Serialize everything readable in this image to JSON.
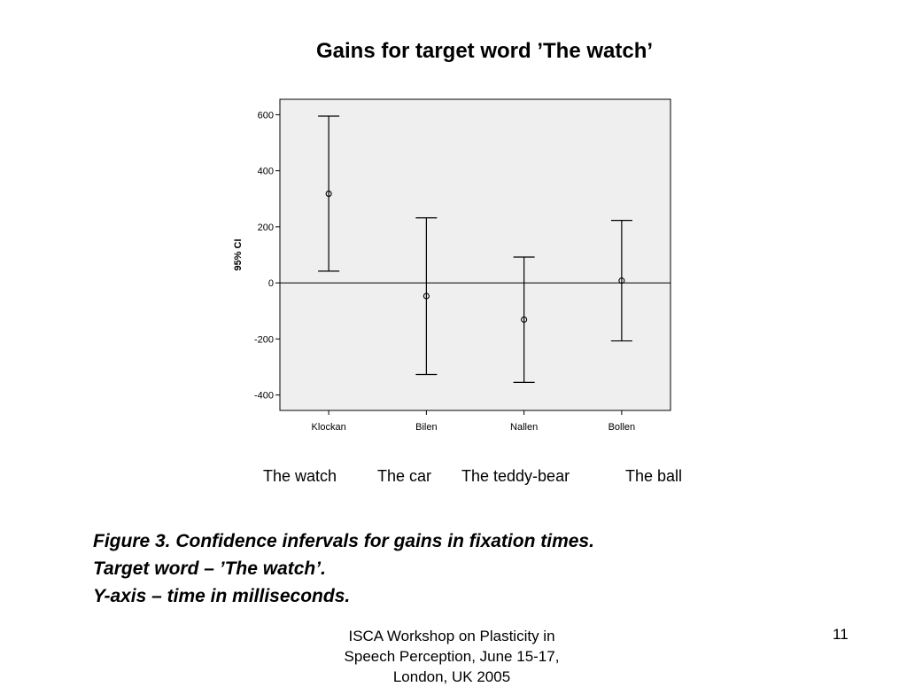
{
  "slide": {
    "title": "Gains for target word ’The watch’",
    "english_labels": [
      "The watch",
      "The car",
      "The teddy-bear",
      "The ball"
    ],
    "caption_lines": [
      "Figure 3. Confidence infervals for gains in fixation times.",
      "Target word – ’The watch’.",
      "Y-axis – time in milliseconds."
    ],
    "footer_lines": [
      "ISCA Workshop on Plasticity in",
      "Speech Perception, June 15-17,",
      "London, UK 2005"
    ],
    "page_number": "11"
  },
  "chart_data": {
    "type": "errorbar",
    "ylabel": "95% CI",
    "xlabel": "",
    "ylim": [
      -455,
      655
    ],
    "yticks": [
      -400,
      -200,
      0,
      200,
      400,
      600
    ],
    "categories": [
      "Klockan",
      "Bilen",
      "Nallen",
      "Bollen"
    ],
    "means": [
      318,
      -47,
      -131,
      8
    ],
    "lower": [
      42,
      -327,
      -355,
      -207
    ],
    "upper": [
      595,
      232,
      92,
      223
    ],
    "reference_line": 0,
    "plot_background": "#efefef"
  }
}
